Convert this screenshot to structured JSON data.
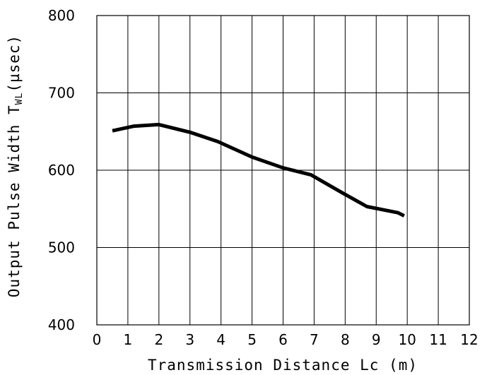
{
  "chart_data": {
    "type": "line",
    "title": "",
    "xlabel": "Transmission Distance Lc (m)",
    "ylabel": "Output Pulse Width T",
    "ylabel_subscript": "WL",
    "ylabel_unit": "(µsec)",
    "xlim": [
      0,
      12
    ],
    "ylim": [
      400,
      800
    ],
    "xticks": [
      0,
      1,
      2,
      3,
      4,
      5,
      6,
      7,
      8,
      9,
      10,
      11,
      12
    ],
    "yticks": [
      400,
      500,
      600,
      700,
      800
    ],
    "grid": true,
    "series": [
      {
        "x": [
          0.5,
          1.2,
          2.0,
          3.0,
          3.9,
          5.0,
          6.0,
          6.9,
          7.9,
          8.7,
          9.7,
          9.9
        ],
        "y": [
          651,
          657,
          659,
          649,
          637,
          617,
          603,
          594,
          571,
          553,
          545,
          541
        ]
      }
    ]
  }
}
